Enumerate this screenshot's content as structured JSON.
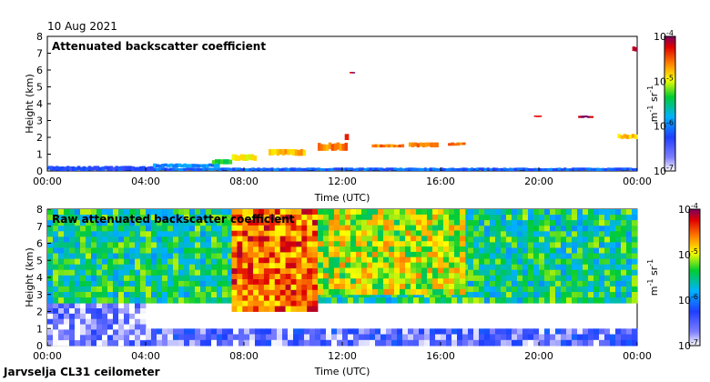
{
  "date_label": "10 Aug 2021",
  "footer_label": "Jarvselja CL31 ceilometer",
  "chart_data": [
    {
      "type": "heatmap",
      "title": "Attenuated backscatter coefficient",
      "xlabel": "Time (UTC)",
      "ylabel": "Height (km)",
      "xlim": [
        0,
        24
      ],
      "ylim": [
        0,
        8
      ],
      "x_ticks": [
        "00:00",
        "04:00",
        "08:00",
        "12:00",
        "16:00",
        "20:00",
        "00:00"
      ],
      "y_ticks": [
        "0",
        "1",
        "2",
        "3",
        "4",
        "5",
        "6",
        "7",
        "8"
      ],
      "colorbar": {
        "ticks": [
          "10-7",
          "10-6",
          "10-5",
          "10-4"
        ],
        "base": "10",
        "exponents": [
          "-7",
          "-6",
          "-5",
          "-4"
        ],
        "unit": "m-1 sr-1",
        "unit_parts": [
          "m",
          "-1",
          " sr",
          "-1"
        ]
      },
      "features": [
        {
          "t0": 0.0,
          "t1": 4.3,
          "h0": 0.0,
          "h1": 0.3,
          "level": 0.25
        },
        {
          "t0": 4.3,
          "t1": 24.0,
          "h0": 0.0,
          "h1": 0.2,
          "level": 0.3
        },
        {
          "t0": 4.3,
          "t1": 7.0,
          "h0": 0.2,
          "h1": 0.45,
          "level": 0.35
        },
        {
          "t0": 6.7,
          "t1": 7.5,
          "h0": 0.4,
          "h1": 0.7,
          "level": 0.55
        },
        {
          "t0": 7.5,
          "t1": 8.5,
          "h0": 0.6,
          "h1": 1.0,
          "level": 0.7
        },
        {
          "t0": 9.0,
          "t1": 10.5,
          "h0": 0.9,
          "h1": 1.3,
          "level": 0.75
        },
        {
          "t0": 11.0,
          "t1": 12.2,
          "h0": 1.2,
          "h1": 1.7,
          "level": 0.8
        },
        {
          "t0": 12.1,
          "t1": 12.25,
          "h0": 1.8,
          "h1": 2.2,
          "level": 0.95
        },
        {
          "t0": 13.2,
          "t1": 14.5,
          "h0": 1.4,
          "h1": 1.6,
          "level": 0.8
        },
        {
          "t0": 14.7,
          "t1": 15.9,
          "h0": 1.4,
          "h1": 1.7,
          "level": 0.8
        },
        {
          "t0": 16.3,
          "t1": 17.0,
          "h0": 1.5,
          "h1": 1.7,
          "level": 0.8
        },
        {
          "t0": 19.8,
          "t1": 20.1,
          "h0": 3.2,
          "h1": 3.3,
          "level": 0.95
        },
        {
          "t0": 21.6,
          "t1": 22.2,
          "h0": 3.15,
          "h1": 3.3,
          "level": 0.97
        },
        {
          "t0": 23.2,
          "t1": 24.0,
          "h0": 1.9,
          "h1": 2.2,
          "level": 0.75
        },
        {
          "t0": 23.8,
          "t1": 24.0,
          "h0": 7.1,
          "h1": 7.4,
          "level": 0.95
        },
        {
          "t0": 12.3,
          "t1": 12.5,
          "h0": 5.8,
          "h1": 5.9,
          "level": 0.95
        }
      ]
    },
    {
      "type": "heatmap",
      "title": "Raw attenuated backscatter coefficient",
      "xlabel": "Time (UTC)",
      "ylabel": "Height (km)",
      "xlim": [
        0,
        24
      ],
      "ylim": [
        0,
        8
      ],
      "x_ticks": [
        "00:00",
        "04:00",
        "08:00",
        "12:00",
        "16:00",
        "20:00",
        "00:00"
      ],
      "y_ticks": [
        "0",
        "1",
        "2",
        "3",
        "4",
        "5",
        "6",
        "7",
        "8"
      ],
      "colorbar": {
        "ticks": [
          "10-7",
          "10-6",
          "10-5",
          "10-4"
        ],
        "base": "10",
        "exponents": [
          "-7",
          "-6",
          "-5",
          "-4"
        ],
        "unit": "m-1 sr-1",
        "unit_parts": [
          "m",
          "-1",
          " sr",
          "-1"
        ]
      },
      "regions": [
        {
          "t0": 0.0,
          "t1": 4.0,
          "h0": 0.0,
          "h1": 2.5,
          "level": 0.1
        },
        {
          "t0": 4.0,
          "t1": 24.0,
          "h0": 0.0,
          "h1": 1.0,
          "level": 0.15
        },
        {
          "t0": 0.0,
          "t1": 24.0,
          "h0": 2.5,
          "h1": 8.0,
          "level": 0.5
        },
        {
          "t0": 7.5,
          "t1": 11.0,
          "h0": 2.0,
          "h1": 8.0,
          "level": 0.82
        },
        {
          "t0": 11.0,
          "t1": 17.0,
          "h0": 3.0,
          "h1": 8.0,
          "level": 0.65
        }
      ]
    }
  ]
}
